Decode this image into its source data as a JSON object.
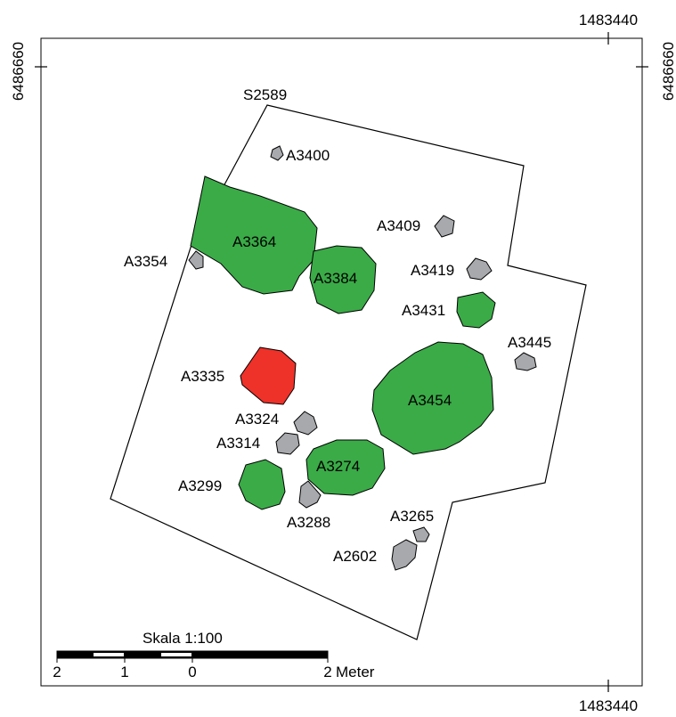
{
  "map": {
    "coords": {
      "top_easting": "1483440",
      "bottom_easting": "1483440",
      "left_northing": "6486660",
      "right_northing": "6486660"
    },
    "trench_label": "S2589",
    "colors": {
      "green": "#3aab47",
      "gray": "#a7a9ac",
      "red": "#ee3129",
      "outline": "#000000"
    },
    "features": {
      "a3400": "A3400",
      "a3364": "A3364",
      "a3354": "A3354",
      "a3409": "A3409",
      "a3384": "A3384",
      "a3419": "A3419",
      "a3431": "A3431",
      "a3445": "A3445",
      "a3335": "A3335",
      "a3454": "A3454",
      "a3324": "A3324",
      "a3314": "A3314",
      "a3274": "A3274",
      "a3299": "A3299",
      "a3288": "A3288",
      "a3265": "A3265",
      "a2602": "A2602"
    },
    "scale_bar": {
      "title": "Skala 1:100",
      "ticks": [
        "2",
        "1",
        "0",
        "2"
      ],
      "unit": "Meter"
    }
  }
}
